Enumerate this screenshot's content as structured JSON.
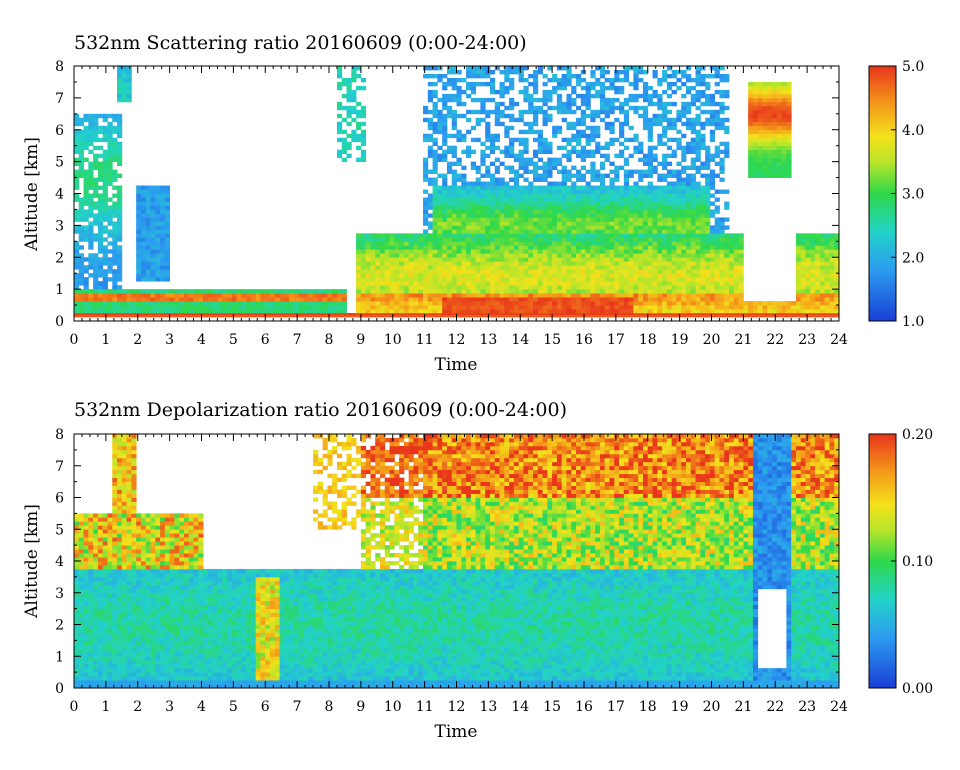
{
  "chart_data": [
    {
      "type": "heatmap",
      "title": "532nm Scattering ratio  20160609 (0:00-24:00)",
      "xlabel": "Time",
      "ylabel": "Altitude [km]",
      "xlim": [
        0,
        24
      ],
      "ylim": [
        0,
        8
      ],
      "x_ticks": [
        "0",
        "1",
        "2",
        "3",
        "4",
        "5",
        "6",
        "7",
        "8",
        "9",
        "10",
        "11",
        "12",
        "13",
        "14",
        "15",
        "16",
        "17",
        "18",
        "19",
        "20",
        "21",
        "22",
        "23",
        "24"
      ],
      "y_ticks": [
        "0",
        "1",
        "2",
        "3",
        "4",
        "5",
        "6",
        "7",
        "8"
      ],
      "colorbar": {
        "range": [
          1.0,
          5.0
        ],
        "tick_labels": [
          "1.0",
          "2.0",
          "3.0",
          "4.0",
          "5.0"
        ]
      },
      "grid": false
    },
    {
      "type": "heatmap",
      "title": "532nm Depolarization ratio  20160609 (0:00-24:00)",
      "xlabel": "Time",
      "ylabel": "Altitude [km]",
      "xlim": [
        0,
        24
      ],
      "ylim": [
        0,
        8
      ],
      "x_ticks": [
        "0",
        "1",
        "2",
        "3",
        "4",
        "5",
        "6",
        "7",
        "8",
        "9",
        "10",
        "11",
        "12",
        "13",
        "14",
        "15",
        "16",
        "17",
        "18",
        "19",
        "20",
        "21",
        "22",
        "23",
        "24"
      ],
      "y_ticks": [
        "0",
        "1",
        "2",
        "3",
        "4",
        "5",
        "6",
        "7",
        "8"
      ],
      "colorbar": {
        "range": [
          0.0,
          0.2
        ],
        "tick_labels": [
          "0.00",
          "0.10",
          "0.20"
        ]
      },
      "grid": false
    }
  ]
}
